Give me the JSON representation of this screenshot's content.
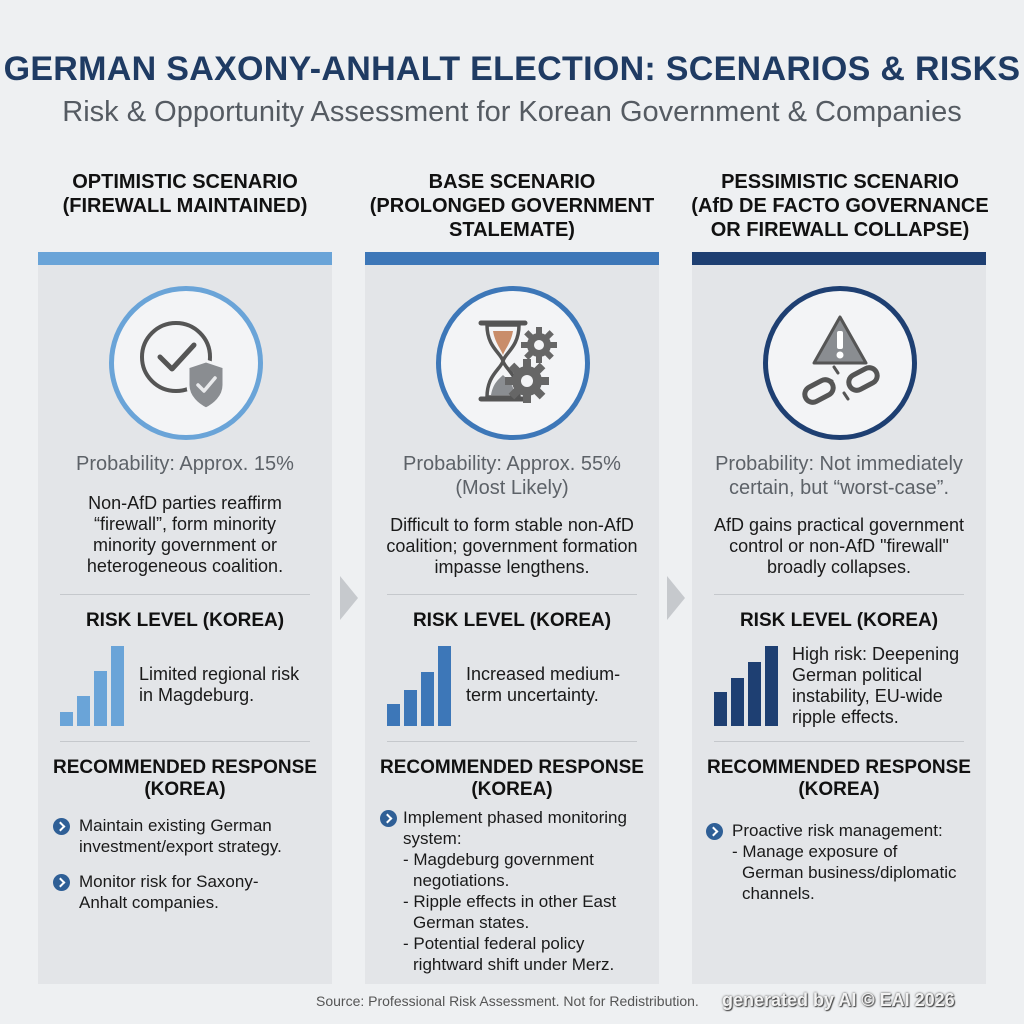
{
  "header": {
    "title": "GERMAN SAXONY-ANHALT ELECTION: SCENARIOS & RISKS",
    "subtitle": "Risk & Opportunity Assessment for Korean Government & Companies"
  },
  "colors": {
    "optimistic": "#6aa4d8",
    "base": "#3d77b8",
    "pessimistic": "#1e3f72"
  },
  "columns": [
    {
      "heading": [
        "OPTIMISTIC SCENARIO",
        "(FIREWALL MAINTAINED)"
      ],
      "icon": "check-shield-icon",
      "probability": [
        "Probability: Approx. 15%"
      ],
      "description": [
        "Non-AfD parties reaffirm",
        "“firewall”, form minority",
        "minority government or",
        "heterogeneous coalition."
      ],
      "risk_heading": "RISK LEVEL (KOREA)",
      "risk_level": 1,
      "risk_text": [
        "Limited regional risk",
        "in Magdeburg."
      ],
      "response_heading": [
        "RECOMMENDED RESPONSE",
        "(KOREA)"
      ],
      "responses": [
        {
          "lines": [
            "Maintain existing German",
            "investment/export strategy."
          ]
        },
        {
          "lines": [
            "Monitor risk for Saxony-",
            "Anhalt companies."
          ]
        }
      ]
    },
    {
      "heading": [
        "BASE SCENARIO",
        "(PROLONGED GOVERNMENT",
        "STALEMATE)"
      ],
      "icon": "hourglass-gears-icon",
      "probability": [
        "Probability: Approx. 55%",
        "(Most Likely)"
      ],
      "description": [
        "Difficult to form stable non-AfD",
        "coalition; government formation",
        "impasse lengthens."
      ],
      "risk_heading": "RISK LEVEL (KOREA)",
      "risk_level": 2,
      "risk_text": [
        "Increased medium-",
        "term uncertainty."
      ],
      "response_heading": [
        "RECOMMENDED RESPONSE",
        "(KOREA)"
      ],
      "responses": [
        {
          "lines": [
            "Implement phased monitoring",
            "system:"
          ],
          "sub": [
            [
              "- Magdeburg government",
              "negotiations."
            ],
            [
              "- Ripple effects in other East",
              "German states."
            ],
            [
              "- Potential federal policy",
              "rightward shift under Merz."
            ]
          ]
        }
      ]
    },
    {
      "heading": [
        "PESSIMISTIC SCENARIO",
        "(AfD DE FACTO GOVERNANCE",
        "OR FIREWALL COLLAPSE)"
      ],
      "icon": "warning-broken-chain-icon",
      "probability": [
        "Probability: Not immediately",
        "certain, but “worst-case”."
      ],
      "description": [
        "AfD gains practical government",
        "control or non-AfD \"firewall\"",
        "broadly collapses."
      ],
      "risk_heading": "RISK LEVEL (KOREA)",
      "risk_level": 3,
      "risk_text": [
        "High risk: Deepening",
        "German political",
        "instability, EU-wide",
        "ripple effects."
      ],
      "response_heading": [
        "RECOMMENDED RESPONSE",
        "(KOREA)"
      ],
      "responses": [
        {
          "lines": [
            "Proactive risk management:"
          ],
          "sub": [
            [
              "- Manage exposure of",
              "German business/diplomatic",
              "channels."
            ]
          ]
        }
      ]
    }
  ],
  "footer": {
    "source": "Source: Professional Risk Assessment. Not for Redistribution.",
    "watermark": "generated by AI © EAI 2026"
  }
}
